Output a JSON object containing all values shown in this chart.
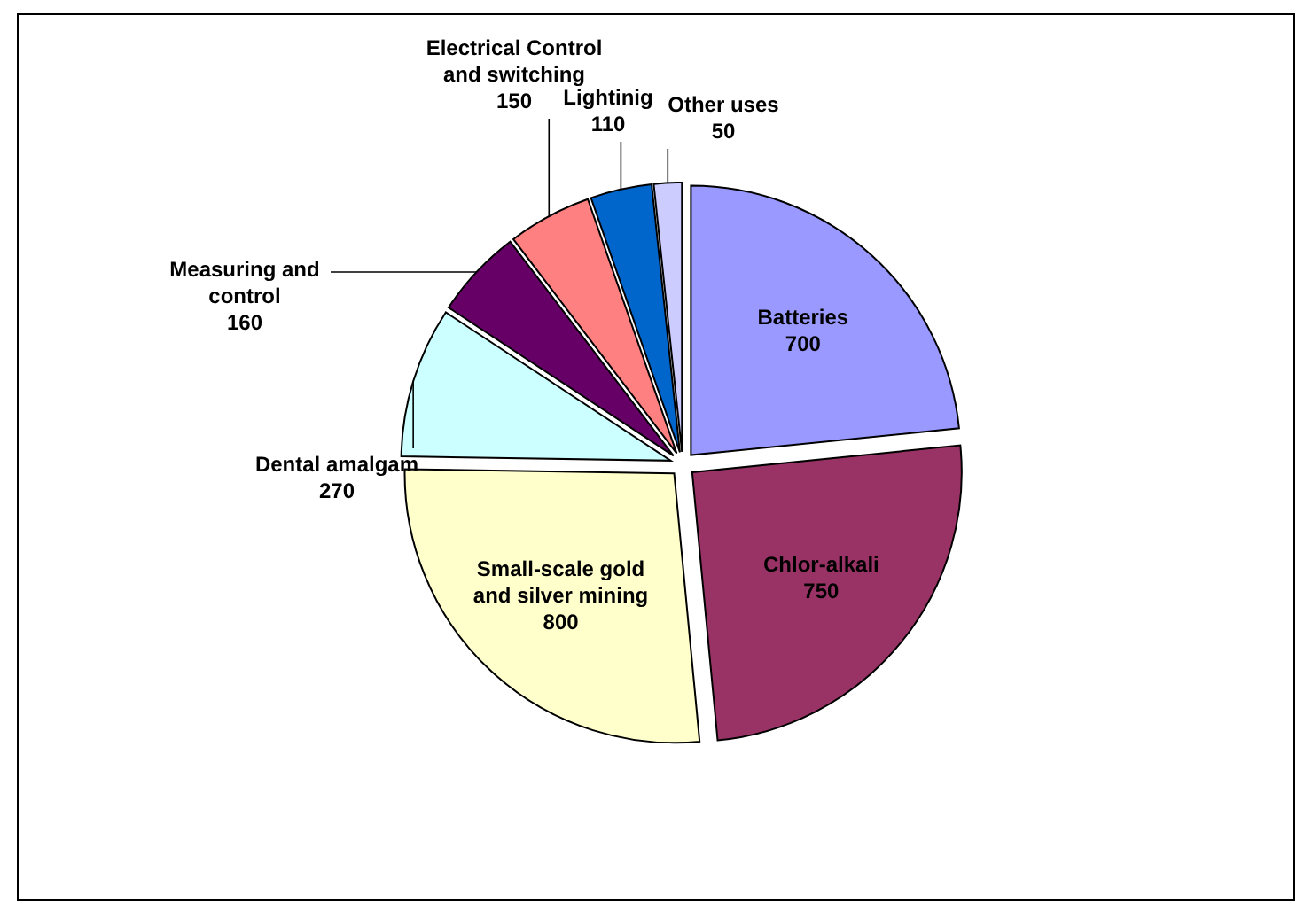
{
  "chart_data": {
    "type": "pie",
    "categories": [
      "Batteries",
      "Chlor-alkali",
      "Small-scale gold and silver mining",
      "Dental amalgam",
      "Measuring and control",
      "Electrical Control and switching",
      "Lightinig",
      "Other uses"
    ],
    "values": [
      700,
      750,
      800,
      270,
      160,
      150,
      110,
      50
    ],
    "colors": [
      "#9999ff",
      "#993366",
      "#ffffcc",
      "#ccffff",
      "#660066",
      "#ff8080",
      "#0066cc",
      "#ccccff"
    ],
    "data_labels": true
  }
}
